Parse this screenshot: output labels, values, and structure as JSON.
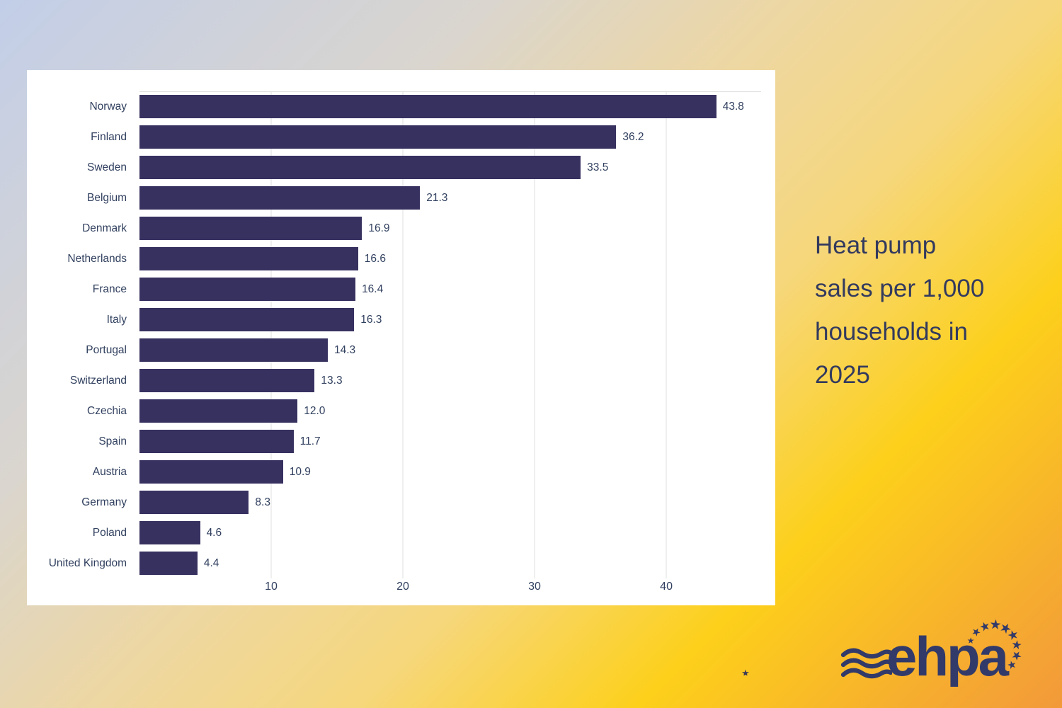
{
  "page": {
    "background_colors": [
      "#c2cee8",
      "#dad5ce",
      "#eed7a0",
      "#f6d77c",
      "#fdd01b",
      "#f2993a"
    ]
  },
  "chart_data": {
    "type": "bar",
    "orientation": "horizontal",
    "title": "Heat pump sales per 1,000 households in 2025",
    "categories": [
      "Norway",
      "Finland",
      "Sweden",
      "Belgium",
      "Denmark",
      "Netherlands",
      "France",
      "Italy",
      "Portugal",
      "Switzerland",
      "Czechia",
      "Spain",
      "Austria",
      "Germany",
      "Poland",
      "United Kingdom"
    ],
    "values": [
      43.8,
      36.2,
      33.5,
      21.3,
      16.9,
      16.6,
      16.4,
      16.3,
      14.3,
      13.3,
      12.0,
      11.7,
      10.9,
      8.3,
      4.6,
      4.4
    ],
    "value_labels": [
      "43.8",
      "36.2",
      "33.5",
      "21.3",
      "16.9",
      "16.6",
      "16.4",
      "16.3",
      "14.3",
      "13.3",
      "12.0",
      "11.7",
      "10.9",
      "8.3",
      "4.6",
      "4.4"
    ],
    "xlabel": "",
    "ylabel": "",
    "x_ticks": [
      10,
      20,
      30,
      40
    ],
    "x_tick_labels": [
      "10",
      "20",
      "30",
      "40"
    ],
    "xlim": [
      0,
      47.2
    ],
    "grid": "vertical",
    "legend": "none",
    "bar_color": "#373160",
    "label_color": "#31405f",
    "grid_color": "#dfdfdf",
    "panel_bg": "#ffffff"
  },
  "title": {
    "lines": [
      "Heat pump",
      "sales per 1,000",
      "households in",
      "2025"
    ],
    "color": "#333a5e"
  },
  "logo": {
    "text": "ehpa",
    "color": "#323a69",
    "star_glyph": "★",
    "star_count": 10
  },
  "artifact": {
    "glyph": "★"
  }
}
